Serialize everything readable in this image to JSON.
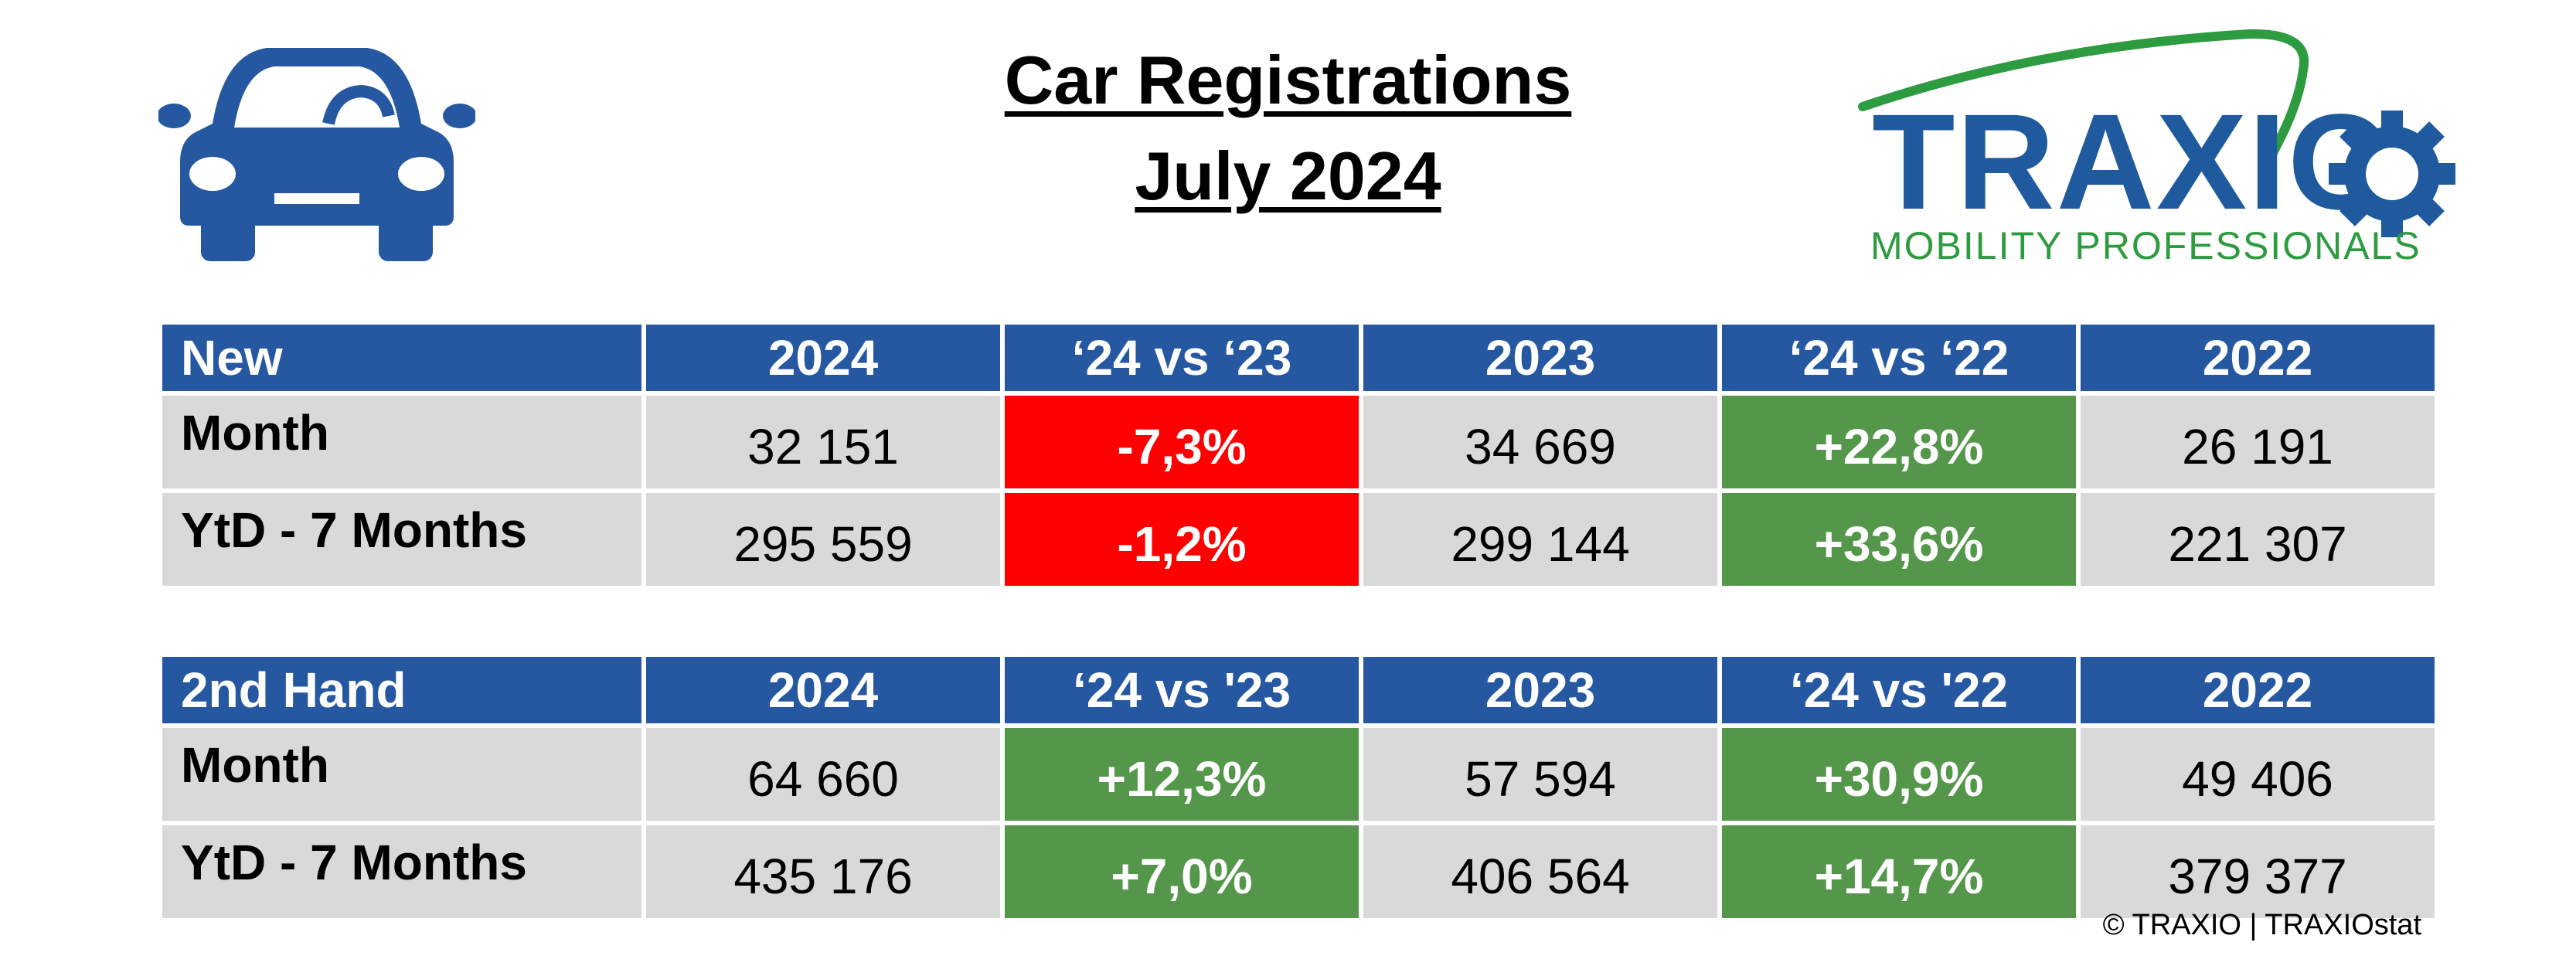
{
  "title": {
    "line1": "Car Registrations",
    "line2": "July 2024"
  },
  "logo": {
    "word": "TRAXIO",
    "tagline": "MOBILITY PROFESSIONALS"
  },
  "icons": {
    "car": "car-front-icon",
    "gear": "gear-icon"
  },
  "colors": {
    "header_blue": "#2558a0",
    "negative_red": "#ff0000",
    "positive_green": "#54974a",
    "row_grey": "#d9d9d9",
    "logo_blue": "#1f5a9e",
    "logo_green": "#2d9b3f"
  },
  "new_table": {
    "headers": [
      "New",
      "2024",
      "‘24 vs ‘23",
      "2023",
      "‘24 vs ‘22",
      "2022"
    ],
    "rows": [
      {
        "label": "Month",
        "v2024": "32 151",
        "vs23": "-7,3%",
        "v2023": "34 669",
        "vs22": "+22,8%",
        "v2022": "26 191"
      },
      {
        "label": "YtD - 7 Months",
        "v2024": "295 559",
        "vs23": "-1,2%",
        "v2023": "299 144",
        "vs22": "+33,6%",
        "v2022": "221 307"
      }
    ]
  },
  "second_hand_table": {
    "headers": [
      "2nd Hand",
      "2024",
      "‘24 vs '23",
      "2023",
      "‘24 vs '22",
      "2022"
    ],
    "rows": [
      {
        "label": "Month",
        "v2024": "64 660",
        "vs23": "+12,3%",
        "v2023": "57 594",
        "vs22": "+30,9%",
        "v2022": "49 406"
      },
      {
        "label": "YtD - 7 Months",
        "v2024": "435 176",
        "vs23": "+7,0%",
        "v2023": "406 564",
        "vs22": "+14,7%",
        "v2022": "379 377"
      }
    ]
  },
  "copyright": "© TRAXIO | TRAXIOstat"
}
